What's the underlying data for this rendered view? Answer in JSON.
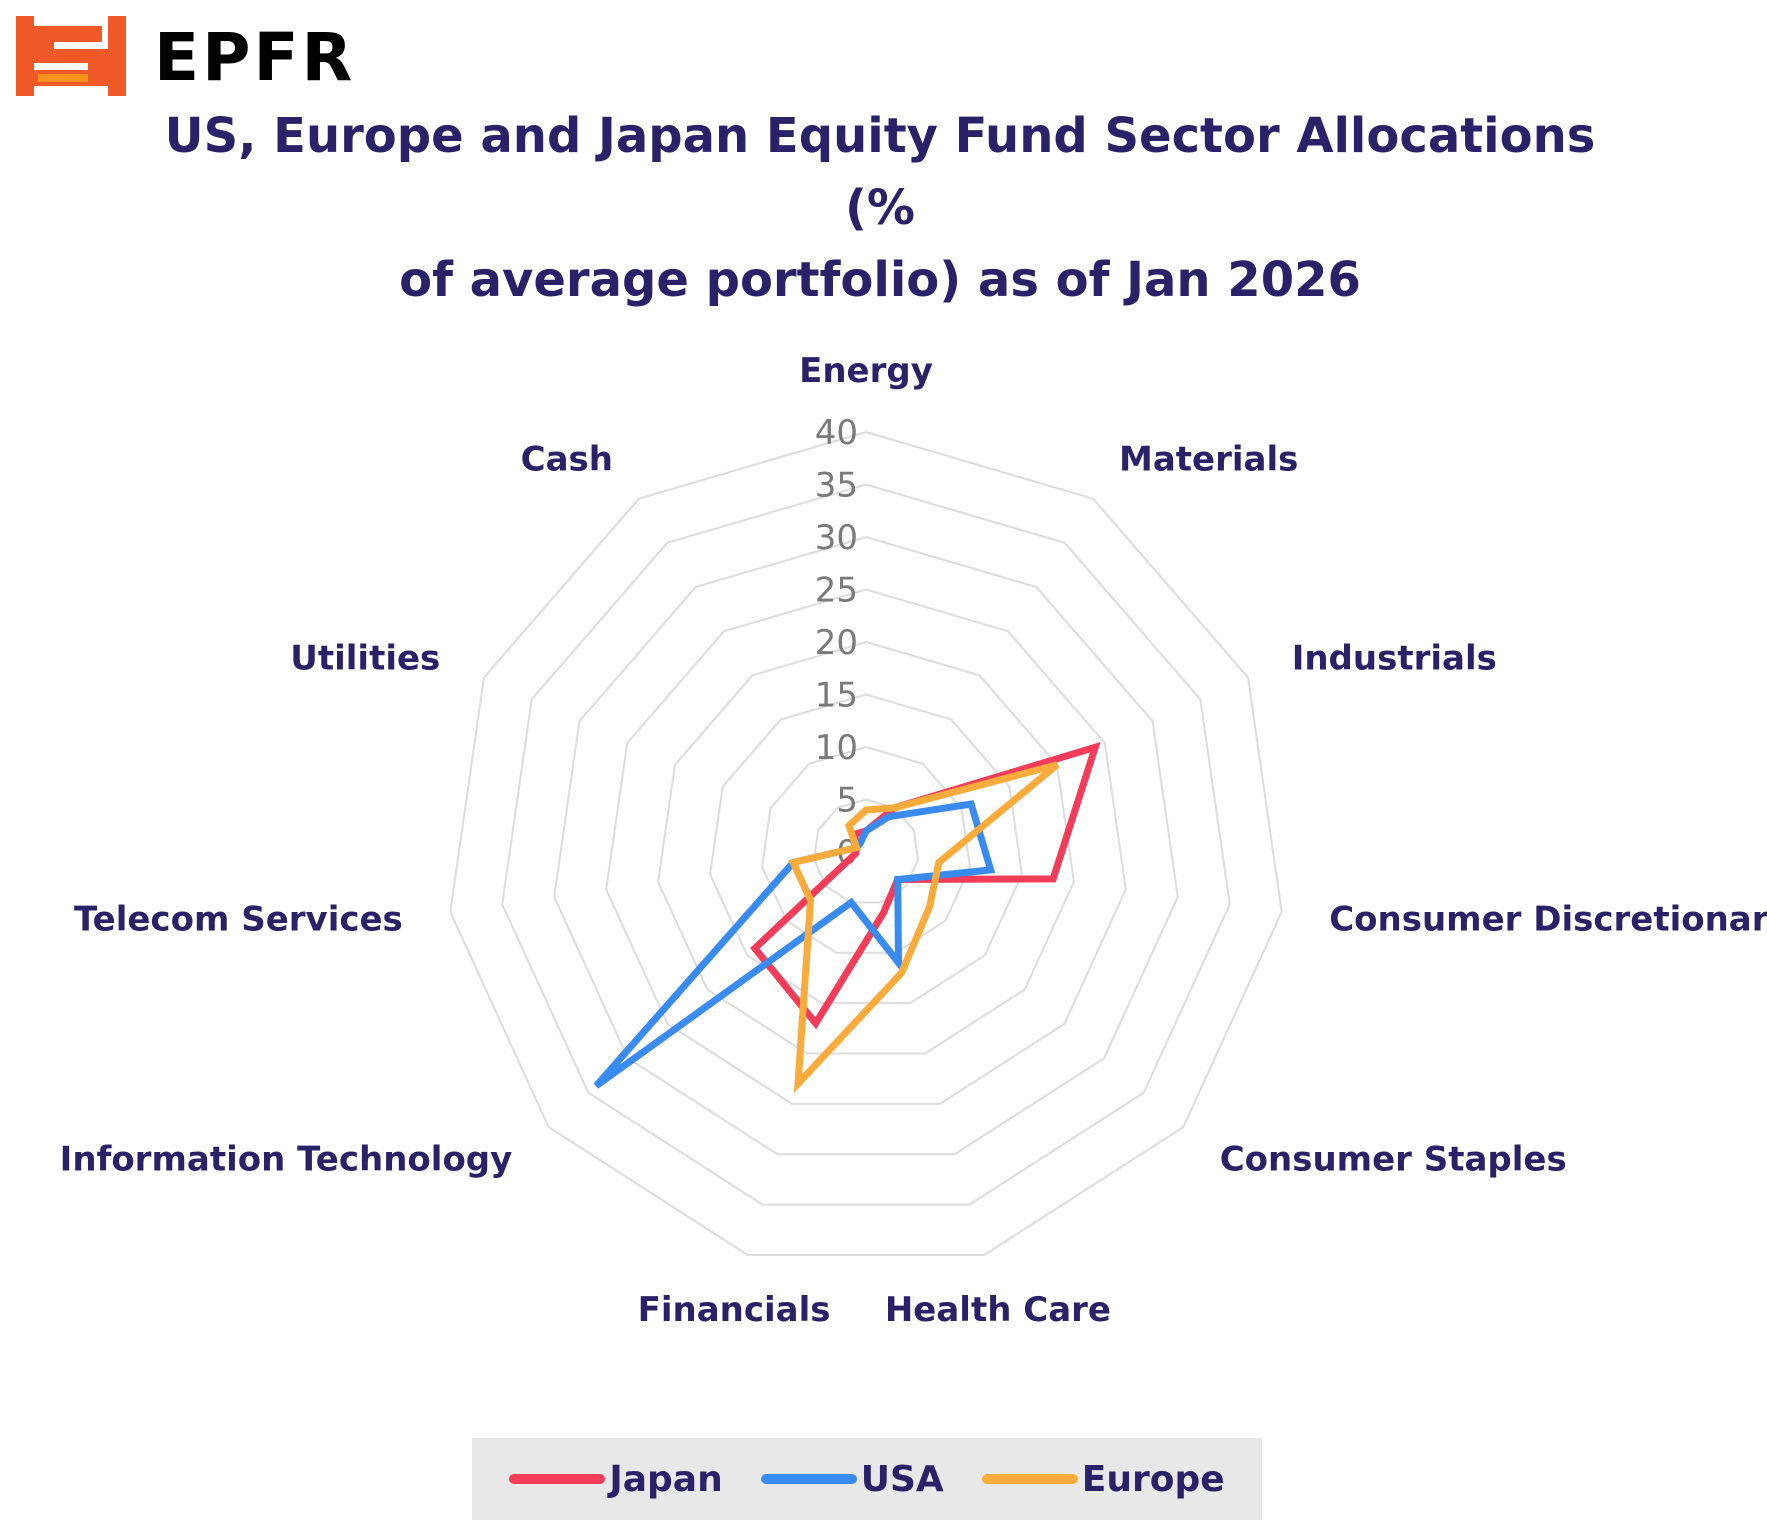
{
  "brand": {
    "name": "EPFR",
    "mark_colors": {
      "primary": "#f05a28",
      "secondary": "#f7941d"
    }
  },
  "chart_data": {
    "type": "radar",
    "title_lines": [
      "US, Europe and Japan Equity Fund Sector Allocations (%",
      "of average portfolio) as of Jan 2026"
    ],
    "categories": [
      "Energy",
      "Materials",
      "Industrials",
      "Consumer Discretionary",
      "Consumer Staples",
      "Health Care",
      "Financials",
      "Information Technology",
      "Telecom Services",
      "Utilities",
      "Cash"
    ],
    "rlim": [
      0,
      40
    ],
    "ticks": [
      0,
      5,
      10,
      15,
      20,
      25,
      30,
      35,
      40
    ],
    "tick_labels": [
      "0",
      "5",
      "10",
      "15",
      "20",
      "25",
      "30",
      "35",
      "40"
    ],
    "grid": true,
    "legend_position": "bottom",
    "series": [
      {
        "name": "Japan",
        "color": "#f23c5a",
        "values": [
          2,
          5,
          24,
          18,
          4,
          6,
          17,
          14,
          1,
          1,
          2
        ]
      },
      {
        "name": "USA",
        "color": "#3a8bf0",
        "values": [
          2,
          4,
          11,
          12,
          4,
          11,
          5,
          34,
          7,
          1,
          1
        ]
      },
      {
        "name": "Europe",
        "color": "#fbab3c",
        "values": [
          4,
          5,
          20,
          7,
          8,
          12,
          23,
          7,
          7,
          1,
          3
        ]
      }
    ]
  }
}
